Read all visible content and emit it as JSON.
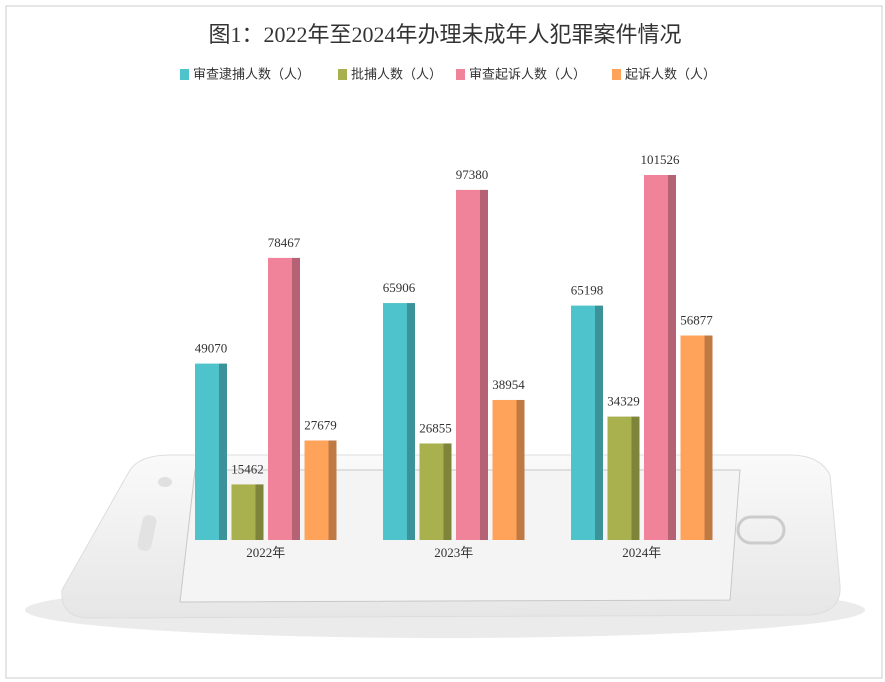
{
  "chart_data": {
    "type": "bar",
    "title": "图1：2022年至2024年办理未成年人犯罪案件情况",
    "categories": [
      "2022年",
      "2023年",
      "2024年"
    ],
    "series": [
      {
        "name": "审查逮捕人数（人）",
        "color": "#4fc3cc",
        "values": [
          49070,
          65906,
          65198
        ]
      },
      {
        "name": "批捕人数（人）",
        "color": "#a9b04e",
        "values": [
          15462,
          26855,
          34329
        ]
      },
      {
        "name": "审查起诉人数（人）",
        "color": "#f0839a",
        "values": [
          78467,
          97380,
          101526
        ]
      },
      {
        "name": "起诉人数（人）",
        "color": "#ffa35a",
        "values": [
          27679,
          38954,
          56877
        ]
      }
    ]
  }
}
